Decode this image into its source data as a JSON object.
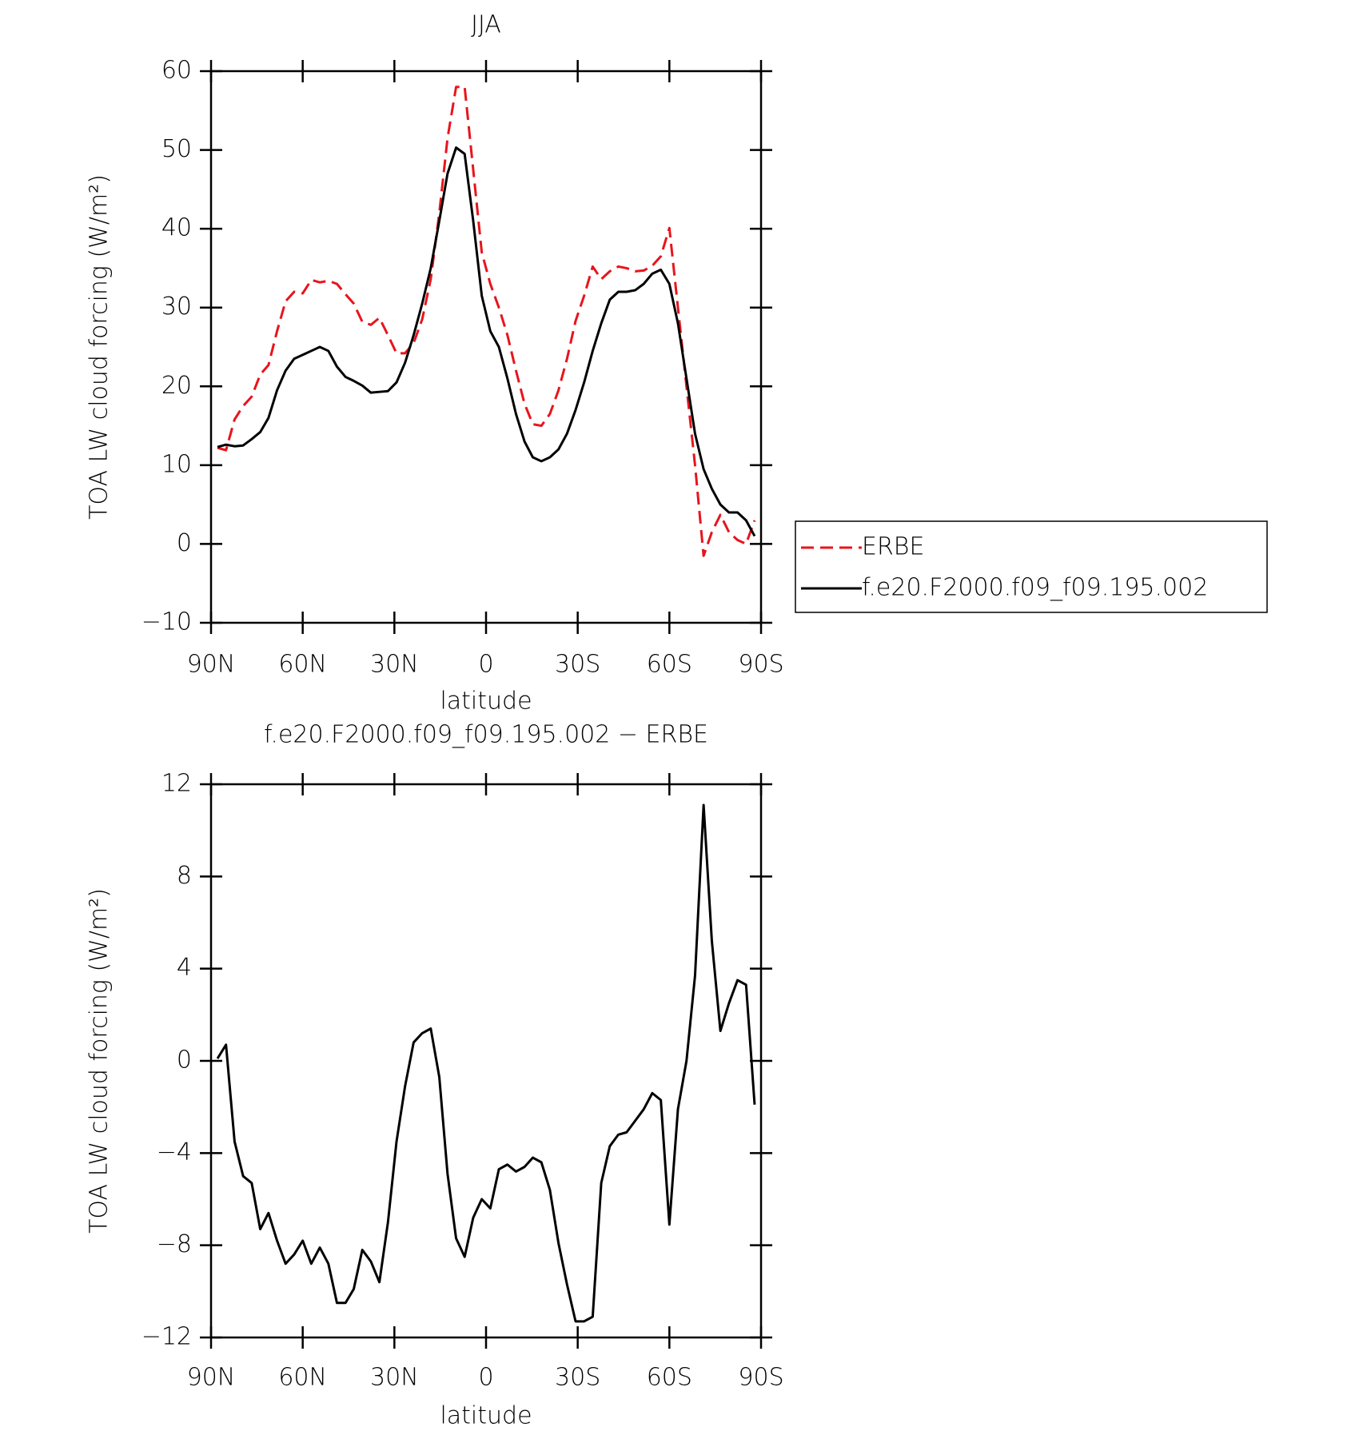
{
  "chart_data": [
    {
      "type": "line",
      "title": "JJA",
      "xlabel": "latitude",
      "ylabel": "TOA LW cloud forcing (W/m²)",
      "x": [
        87.9,
        85.1,
        82.3,
        79.5,
        76.7,
        73.9,
        71.2,
        68.4,
        65.6,
        62.8,
        60.0,
        57.2,
        54.4,
        51.6,
        48.8,
        46.0,
        43.3,
        40.5,
        37.7,
        34.9,
        32.1,
        29.3,
        26.5,
        23.7,
        20.9,
        18.1,
        15.3,
        12.6,
        9.8,
        7.0,
        4.2,
        1.4,
        -1.4,
        -4.2,
        -7.0,
        -9.8,
        -12.6,
        -15.3,
        -18.1,
        -20.9,
        -23.7,
        -26.5,
        -29.3,
        -32.1,
        -34.9,
        -37.7,
        -40.5,
        -43.3,
        -46.0,
        -48.8,
        -51.6,
        -54.4,
        -57.2,
        -60.0,
        -62.8,
        -65.6,
        -68.4,
        -71.2,
        -73.9,
        -76.7,
        -79.5,
        -82.3,
        -85.1,
        -87.9
      ],
      "series": [
        {
          "name": "ERBE",
          "color": "#e8141c",
          "line_style": "dashed",
          "values": [
            12.2,
            11.9,
            15.8,
            17.5,
            18.7,
            21.5,
            22.7,
            27,
            30.8,
            32,
            31.8,
            33.5,
            33.2,
            33.4,
            33,
            31.7,
            30.5,
            28.2,
            27.8,
            28.7,
            26.5,
            24.2,
            24.2,
            25.5,
            28.5,
            33.6,
            42,
            51.5,
            58,
            58,
            47.5,
            37,
            33,
            30,
            26.5,
            22,
            17.8,
            15.2,
            15,
            16.5,
            19.5,
            23.5,
            28.3,
            31.5,
            35.2,
            33.6,
            34.6,
            35.2,
            35,
            34.6,
            34.7,
            35.3,
            36.5,
            40.1,
            30,
            20,
            10,
            -1.5,
            1.5,
            3.7,
            1.5,
            0.5,
            0,
            3
          ]
        },
        {
          "name": "f.e20.F2000.f09_f09.195.002",
          "color": "#000000",
          "line_style": "solid",
          "values": [
            12.3,
            12.6,
            12.4,
            12.5,
            13.3,
            14.2,
            16,
            19.5,
            22,
            23.5,
            24,
            24.5,
            25,
            24.5,
            22.5,
            21.2,
            20.7,
            20.1,
            19.2,
            19.3,
            19.4,
            20.5,
            23,
            26.5,
            30.5,
            35,
            41,
            47,
            50.3,
            49.5,
            41,
            31.5,
            27,
            25,
            21,
            16.5,
            13,
            11,
            10.5,
            11,
            12,
            14,
            17,
            20.5,
            24.5,
            28,
            31,
            32,
            32,
            32.2,
            33,
            34.3,
            34.8,
            33,
            28,
            21,
            14,
            9.5,
            7,
            5,
            4,
            4,
            3,
            1
          ]
        }
      ],
      "xlim": [
        90,
        -90
      ],
      "xticks": [
        {
          "value": 90,
          "label": "90N"
        },
        {
          "value": 60,
          "label": "60N"
        },
        {
          "value": 30,
          "label": "30N"
        },
        0,
        {
          "value": -30,
          "label": "30S"
        },
        {
          "value": -60,
          "label": "60S"
        },
        {
          "value": -90,
          "label": "90S"
        }
      ],
      "ylim": [
        -10,
        60
      ],
      "yticks": [
        {
          "value": -10,
          "label": "−10"
        },
        0,
        10,
        20,
        30,
        40,
        50,
        60
      ],
      "legend": "right"
    },
    {
      "type": "line",
      "title": "f.e20.F2000.f09_f09.195.002 − ERBE",
      "xlabel": "latitude",
      "ylabel": "TOA LW cloud forcing (W/m²)",
      "x": [
        87.9,
        85.1,
        82.3,
        79.5,
        76.7,
        73.9,
        71.2,
        68.4,
        65.6,
        62.8,
        60.0,
        57.2,
        54.4,
        51.6,
        48.8,
        46.0,
        43.3,
        40.5,
        37.7,
        34.9,
        32.1,
        29.3,
        26.5,
        23.7,
        20.9,
        18.1,
        15.3,
        12.6,
        9.8,
        7.0,
        4.2,
        1.4,
        -1.4,
        -4.2,
        -7.0,
        -9.8,
        -12.6,
        -15.3,
        -18.1,
        -20.9,
        -23.7,
        -26.5,
        -29.3,
        -32.1,
        -34.9,
        -37.7,
        -40.5,
        -43.3,
        -46.0,
        -48.8,
        -51.6,
        -54.4,
        -57.2,
        -60.0,
        -62.8,
        -65.6,
        -68.4,
        -71.2,
        -73.9,
        -76.7,
        -79.5,
        -82.3,
        -85.1,
        -87.9
      ],
      "values": [
        0.1,
        0.7,
        -3.5,
        -5,
        -5.3,
        -7.3,
        -6.6,
        -7.8,
        -8.8,
        -8.4,
        -7.8,
        -8.8,
        -8.1,
        -8.8,
        -10.5,
        -10.5,
        -9.9,
        -8.2,
        -8.7,
        -9.6,
        -7,
        -3.5,
        -1.1,
        0.8,
        1.2,
        1.4,
        -0.7,
        -4.9,
        -7.7,
        -8.5,
        -6.8,
        -6,
        -6.4,
        -4.7,
        -4.5,
        -4.8,
        -4.6,
        -4.2,
        -4.4,
        -5.6,
        -7.9,
        -9.7,
        -11.3,
        -11.3,
        -11.1,
        -5.3,
        -3.7,
        -3.2,
        -3.1,
        -2.6,
        -2.1,
        -1.4,
        -1.7,
        -7.1,
        -2.1,
        0,
        3.7,
        11.1,
        5.2,
        1.3,
        2.5,
        3.5,
        3.3,
        -1.9
      ],
      "color": "#000000",
      "xlim": [
        90,
        -90
      ],
      "xticks": [
        {
          "value": 90,
          "label": "90N"
        },
        {
          "value": 60,
          "label": "60N"
        },
        {
          "value": 30,
          "label": "30N"
        },
        0,
        {
          "value": -30,
          "label": "30S"
        },
        {
          "value": -60,
          "label": "60S"
        },
        {
          "value": -90,
          "label": "90S"
        }
      ],
      "ylim": [
        -12,
        12
      ],
      "yticks": [
        {
          "value": -12,
          "label": "−12"
        },
        {
          "value": -8,
          "label": "−8"
        },
        {
          "value": -4,
          "label": "−4"
        },
        0,
        4,
        8,
        12
      ]
    }
  ]
}
